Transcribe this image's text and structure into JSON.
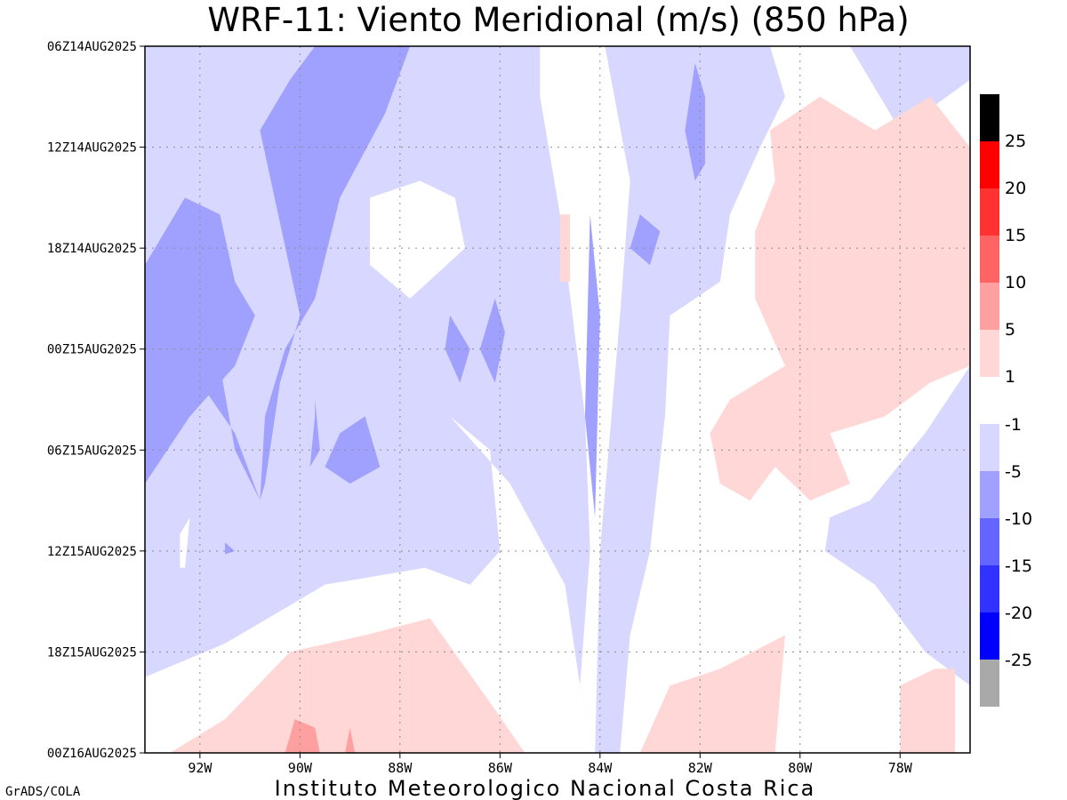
{
  "chart_data": {
    "type": "heatmap",
    "title": "WRF-11: Viento Meridional (m/s) (850 hPa)",
    "footer": "Instituto Meteorologico Nacional Costa Rica",
    "credit": "GrADS/COLA",
    "x_tick_labels": [
      "92W",
      "90W",
      "88W",
      "86W",
      "84W",
      "82W",
      "80W",
      "78W"
    ],
    "x_tick_values": [
      -92,
      -90,
      -88,
      -86,
      -84,
      -82,
      -80,
      -78
    ],
    "xlim": [
      -93.1,
      -76.6
    ],
    "y_tick_labels": [
      "06Z14AUG2025",
      "12Z14AUG2025",
      "18Z14AUG2025",
      "00Z15AUG2025",
      "06Z15AUG2025",
      "12Z15AUG2025",
      "18Z15AUG2025",
      "00Z16AUG2025"
    ],
    "y_tick_hours": [
      0,
      6,
      12,
      18,
      24,
      30,
      36,
      42
    ],
    "grid": true,
    "colorbar": {
      "boundaries": [
        "25",
        "20",
        "15",
        "10",
        "5",
        "1",
        "-1",
        "-5",
        "-10",
        "-15",
        "-20",
        "-25"
      ],
      "positive_colors": [
        "#000000",
        "#ff0000",
        "#ff3232",
        "#ff6464",
        "#ffa0a0",
        "#ffd7d7"
      ],
      "negative_colors": [
        "#d7d7ff",
        "#a0a0ff",
        "#6464ff",
        "#3232ff",
        "#0000ff",
        "#a9a9a9"
      ]
    },
    "levels": {
      "white": "#ffffff",
      "neg1": "#d7d7ff",
      "neg5": "#a0a0ff",
      "neg10": "#6464ff",
      "pos1": "#ffd7d7",
      "pos5": "#ffa0a0"
    },
    "regions": [
      {
        "level": "neg1",
        "pts": [
          [
            -93.1,
            0
          ],
          [
            -85.2,
            0
          ],
          [
            -85.2,
            3
          ],
          [
            -84.8,
            10
          ],
          [
            -84.3,
            22
          ],
          [
            -84.2,
            30
          ],
          [
            -84.4,
            38
          ],
          [
            -84.7,
            42
          ],
          [
            -93.1,
            42
          ]
        ]
      },
      {
        "level": "neg1",
        "pts": [
          [
            -83.9,
            0
          ],
          [
            -80.6,
            0
          ],
          [
            -80.3,
            3
          ],
          [
            -80.8,
            6
          ],
          [
            -81.4,
            10
          ],
          [
            -81.6,
            14
          ],
          [
            -82.6,
            16
          ],
          [
            -82.7,
            22
          ],
          [
            -83.0,
            30
          ],
          [
            -83.4,
            35
          ],
          [
            -83.6,
            42
          ],
          [
            -84.1,
            42
          ],
          [
            -84.0,
            30
          ],
          [
            -83.6,
            16
          ],
          [
            -83.4,
            8
          ]
        ]
      },
      {
        "level": "neg1",
        "pts": [
          [
            -79.0,
            0
          ],
          [
            -76.6,
            0
          ],
          [
            -76.6,
            2
          ],
          [
            -78.0,
            5
          ],
          [
            -78.6,
            2
          ]
        ]
      },
      {
        "level": "neg1",
        "pts": [
          [
            -76.6,
            19
          ],
          [
            -76.6,
            38
          ],
          [
            -77.5,
            36
          ],
          [
            -78.5,
            32
          ],
          [
            -79.5,
            30
          ],
          [
            -79.4,
            28
          ],
          [
            -78.6,
            27
          ],
          [
            -77.5,
            23
          ]
        ]
      },
      {
        "level": "white",
        "pts": [
          [
            -88.6,
            9
          ],
          [
            -87.6,
            8
          ],
          [
            -86.9,
            9
          ],
          [
            -86.7,
            12
          ],
          [
            -87.8,
            15
          ],
          [
            -88.6,
            13
          ]
        ]
      },
      {
        "level": "white",
        "pts": [
          [
            -92.4,
            29
          ],
          [
            -92.2,
            28
          ],
          [
            -92.3,
            31
          ],
          [
            -92.4,
            31
          ]
        ]
      },
      {
        "level": "white",
        "pts": [
          [
            -87.0,
            22
          ],
          [
            -86.2,
            24
          ],
          [
            -86.0,
            30
          ],
          [
            -86.6,
            32
          ],
          [
            -87.5,
            31
          ],
          [
            -89.5,
            32
          ],
          [
            -91.5,
            35.5
          ],
          [
            -93.1,
            37.5
          ],
          [
            -93.1,
            42
          ],
          [
            -84.7,
            42
          ],
          [
            -84.4,
            38
          ],
          [
            -84.7,
            32
          ],
          [
            -85.8,
            26
          ]
        ]
      },
      {
        "level": "neg5",
        "pts": [
          [
            -89.7,
            0
          ],
          [
            -87.8,
            0
          ],
          [
            -88.3,
            4
          ],
          [
            -89.2,
            9
          ],
          [
            -89.7,
            15
          ],
          [
            -90.3,
            18
          ],
          [
            -90.7,
            22
          ],
          [
            -90.8,
            27
          ],
          [
            -91.3,
            24
          ],
          [
            -91.6,
            19
          ],
          [
            -92.0,
            19
          ],
          [
            -92.5,
            18
          ],
          [
            -93.1,
            16
          ],
          [
            -93.1,
            18
          ],
          [
            -93.1,
            25
          ],
          [
            -92.8,
            22
          ],
          [
            -92.0,
            20
          ],
          [
            -91.3,
            23
          ],
          [
            -90.8,
            27
          ],
          [
            -90.7,
            26
          ],
          [
            -90.4,
            20
          ],
          [
            -90.0,
            16
          ],
          [
            -90.8,
            5
          ],
          [
            -90.2,
            2
          ]
        ]
      },
      {
        "level": "neg5",
        "pts": [
          [
            -93.1,
            13
          ],
          [
            -92.3,
            9
          ],
          [
            -91.6,
            10
          ],
          [
            -91.3,
            14
          ],
          [
            -90.9,
            16
          ],
          [
            -91.3,
            19
          ],
          [
            -92.2,
            22
          ],
          [
            -93.1,
            26
          ]
        ]
      },
      {
        "level": "neg5",
        "pts": [
          [
            -89.7,
            21
          ],
          [
            -89.6,
            24
          ],
          [
            -89.8,
            25
          ],
          [
            -89.7,
            22
          ]
        ]
      },
      {
        "level": "neg5",
        "pts": [
          [
            -89.2,
            23
          ],
          [
            -88.7,
            22
          ],
          [
            -88.4,
            25
          ],
          [
            -89.0,
            26
          ],
          [
            -89.5,
            25
          ]
        ]
      },
      {
        "level": "neg5",
        "pts": [
          [
            -87.0,
            16
          ],
          [
            -86.6,
            18
          ],
          [
            -86.8,
            20
          ],
          [
            -87.1,
            18
          ]
        ]
      },
      {
        "level": "neg5",
        "pts": [
          [
            -86.1,
            15
          ],
          [
            -85.9,
            17
          ],
          [
            -86.1,
            20
          ],
          [
            -86.4,
            18
          ]
        ]
      },
      {
        "level": "neg5",
        "pts": [
          [
            -84.2,
            10
          ],
          [
            -84.0,
            16
          ],
          [
            -84.1,
            28
          ],
          [
            -84.3,
            22
          ]
        ]
      },
      {
        "level": "neg5",
        "pts": [
          [
            -83.2,
            10
          ],
          [
            -82.8,
            11
          ],
          [
            -83.0,
            13
          ],
          [
            -83.4,
            12
          ]
        ]
      },
      {
        "level": "neg5",
        "pts": [
          [
            -82.1,
            1
          ],
          [
            -81.9,
            3
          ],
          [
            -81.9,
            7
          ],
          [
            -82.1,
            8
          ],
          [
            -82.3,
            5
          ]
        ]
      },
      {
        "level": "neg5",
        "pts": [
          [
            -91.5,
            29.5
          ],
          [
            -91.3,
            30
          ],
          [
            -91.5,
            30.2
          ]
        ]
      },
      {
        "level": "pos1",
        "pts": [
          [
            -80.6,
            5
          ],
          [
            -79.6,
            3
          ],
          [
            -78.5,
            5
          ],
          [
            -77.4,
            3
          ],
          [
            -76.6,
            6
          ],
          [
            -76.6,
            19
          ],
          [
            -77.4,
            20
          ],
          [
            -78.3,
            22
          ],
          [
            -79.4,
            23
          ],
          [
            -79.0,
            26
          ],
          [
            -79.8,
            27
          ],
          [
            -80.5,
            25
          ],
          [
            -81.0,
            27
          ],
          [
            -81.6,
            26
          ],
          [
            -81.8,
            23
          ],
          [
            -81.4,
            21
          ],
          [
            -80.3,
            19
          ],
          [
            -80.9,
            15
          ],
          [
            -80.9,
            11
          ],
          [
            -80.5,
            8
          ]
        ]
      },
      {
        "level": "pos1",
        "pts": [
          [
            -92.6,
            42
          ],
          [
            -91.5,
            40
          ],
          [
            -90.2,
            36
          ],
          [
            -88.7,
            35
          ],
          [
            -87.4,
            34
          ],
          [
            -86.2,
            39
          ],
          [
            -85.5,
            42
          ]
        ]
      },
      {
        "level": "pos1",
        "pts": [
          [
            -80.3,
            35
          ],
          [
            -81.6,
            37
          ],
          [
            -82.6,
            38
          ],
          [
            -83.2,
            42
          ],
          [
            -80.5,
            42
          ]
        ]
      },
      {
        "level": "pos1",
        "pts": [
          [
            -78.0,
            38
          ],
          [
            -77.3,
            37
          ],
          [
            -76.9,
            37
          ],
          [
            -76.9,
            42
          ],
          [
            -78.0,
            42
          ]
        ]
      },
      {
        "level": "pos1",
        "pts": [
          [
            -84.8,
            10
          ],
          [
            -84.6,
            10
          ],
          [
            -84.6,
            14
          ],
          [
            -84.8,
            14
          ]
        ]
      },
      {
        "level": "pos5",
        "pts": [
          [
            -90.3,
            42
          ],
          [
            -90.1,
            40
          ],
          [
            -89.7,
            40.5
          ],
          [
            -89.6,
            42
          ]
        ]
      },
      {
        "level": "pos5",
        "pts": [
          [
            -89.1,
            42
          ],
          [
            -89.0,
            40.5
          ],
          [
            -88.9,
            42
          ]
        ]
      }
    ]
  }
}
